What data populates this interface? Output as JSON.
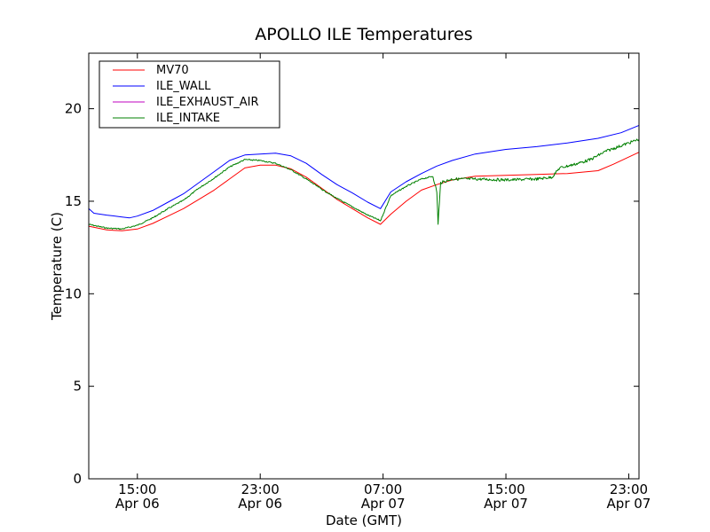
{
  "chart_data": {
    "type": "line",
    "title": "APOLLO ILE Temperatures",
    "xlabel": "Date (GMT)",
    "ylabel": "Temperature (C)",
    "ylim": [
      0,
      23
    ],
    "xlim": [
      "2012-04-06 11:50",
      "2012-04-07 23:40"
    ],
    "grid": false,
    "legend_position": "top-left",
    "y_ticks": [
      0,
      5,
      10,
      15,
      20
    ],
    "x_ticks": [
      {
        "time": "2012-04-06 15:00",
        "label_time": "15:00",
        "label_date": "Apr 06"
      },
      {
        "time": "2012-04-06 23:00",
        "label_time": "23:00",
        "label_date": "Apr 06"
      },
      {
        "time": "2012-04-07 07:00",
        "label_time": "07:00",
        "label_date": "Apr 07"
      },
      {
        "time": "2012-04-07 15:00",
        "label_time": "15:00",
        "label_date": "Apr 07"
      },
      {
        "time": "2012-04-07 23:00",
        "label_time": "23:00",
        "label_date": "Apr 07"
      }
    ],
    "series": [
      {
        "name": "MV70",
        "color": "#ff0000",
        "points": [
          [
            "2012-04-06 11:50",
            13.65
          ],
          [
            "2012-04-06 13:00",
            13.45
          ],
          [
            "2012-04-06 14:00",
            13.4
          ],
          [
            "2012-04-06 15:00",
            13.5
          ],
          [
            "2012-04-06 16:00",
            13.8
          ],
          [
            "2012-04-06 17:00",
            14.2
          ],
          [
            "2012-04-06 18:00",
            14.6
          ],
          [
            "2012-04-06 19:00",
            15.1
          ],
          [
            "2012-04-06 20:00",
            15.6
          ],
          [
            "2012-04-06 21:00",
            16.2
          ],
          [
            "2012-04-06 22:00",
            16.8
          ],
          [
            "2012-04-06 23:00",
            16.95
          ],
          [
            "2012-04-07 00:00",
            16.95
          ],
          [
            "2012-04-07 01:00",
            16.75
          ],
          [
            "2012-04-07 02:00",
            16.3
          ],
          [
            "2012-04-07 03:00",
            15.7
          ],
          [
            "2012-04-07 04:00",
            15.1
          ],
          [
            "2012-04-07 05:00",
            14.6
          ],
          [
            "2012-04-07 06:00",
            14.1
          ],
          [
            "2012-04-07 06:50",
            13.75
          ],
          [
            "2012-04-07 07:30",
            14.3
          ],
          [
            "2012-04-07 08:30",
            15.0
          ],
          [
            "2012-04-07 09:30",
            15.6
          ],
          [
            "2012-04-07 10:30",
            15.9
          ],
          [
            "2012-04-07 11:30",
            16.15
          ],
          [
            "2012-04-07 13:00",
            16.35
          ],
          [
            "2012-04-07 15:00",
            16.4
          ],
          [
            "2012-04-07 17:00",
            16.45
          ],
          [
            "2012-04-07 19:00",
            16.5
          ],
          [
            "2012-04-07 21:00",
            16.65
          ],
          [
            "2012-04-07 22:00",
            17.0
          ],
          [
            "2012-04-07 23:40",
            17.65
          ]
        ]
      },
      {
        "name": "ILE_WALL",
        "color": "#0000ff",
        "points": [
          [
            "2012-04-06 11:50",
            14.6
          ],
          [
            "2012-04-06 12:10",
            14.35
          ],
          [
            "2012-04-06 13:00",
            14.25
          ],
          [
            "2012-04-06 14:00",
            14.15
          ],
          [
            "2012-04-06 14:30",
            14.1
          ],
          [
            "2012-04-06 15:00",
            14.2
          ],
          [
            "2012-04-06 16:00",
            14.5
          ],
          [
            "2012-04-06 17:00",
            14.95
          ],
          [
            "2012-04-06 18:00",
            15.4
          ],
          [
            "2012-04-06 19:00",
            16.0
          ],
          [
            "2012-04-06 20:00",
            16.6
          ],
          [
            "2012-04-06 21:00",
            17.2
          ],
          [
            "2012-04-06 22:00",
            17.5
          ],
          [
            "2012-04-06 23:00",
            17.55
          ],
          [
            "2012-04-07 00:00",
            17.6
          ],
          [
            "2012-04-07 01:00",
            17.45
          ],
          [
            "2012-04-07 02:00",
            17.05
          ],
          [
            "2012-04-07 03:00",
            16.45
          ],
          [
            "2012-04-07 04:00",
            15.9
          ],
          [
            "2012-04-07 05:00",
            15.45
          ],
          [
            "2012-04-07 06:00",
            14.95
          ],
          [
            "2012-04-07 06:50",
            14.6
          ],
          [
            "2012-04-07 07:30",
            15.5
          ],
          [
            "2012-04-07 08:30",
            16.05
          ],
          [
            "2012-04-07 09:30",
            16.5
          ],
          [
            "2012-04-07 10:30",
            16.9
          ],
          [
            "2012-04-07 11:30",
            17.2
          ],
          [
            "2012-04-07 13:00",
            17.55
          ],
          [
            "2012-04-07 15:00",
            17.8
          ],
          [
            "2012-04-07 17:00",
            17.95
          ],
          [
            "2012-04-07 19:00",
            18.15
          ],
          [
            "2012-04-07 21:00",
            18.4
          ],
          [
            "2012-04-07 22:30",
            18.7
          ],
          [
            "2012-04-07 23:40",
            19.1
          ]
        ]
      },
      {
        "name": "ILE_EXHAUST_AIR",
        "color": "#bf00bf",
        "points": []
      },
      {
        "name": "ILE_INTAKE",
        "color": "#008000",
        "points": [
          [
            "2012-04-06 11:50",
            13.75
          ],
          [
            "2012-04-06 13:00",
            13.55
          ],
          [
            "2012-04-06 14:00",
            13.5
          ],
          [
            "2012-04-06 15:00",
            13.7
          ],
          [
            "2012-04-06 16:00",
            14.1
          ],
          [
            "2012-04-06 17:00",
            14.6
          ],
          [
            "2012-04-06 18:00",
            15.05
          ],
          [
            "2012-04-06 19:00",
            15.7
          ],
          [
            "2012-04-06 20:00",
            16.25
          ],
          [
            "2012-04-06 21:00",
            16.85
          ],
          [
            "2012-04-06 22:00",
            17.25
          ],
          [
            "2012-04-06 23:00",
            17.2
          ],
          [
            "2012-04-07 00:00",
            17.05
          ],
          [
            "2012-04-07 01:00",
            16.7
          ],
          [
            "2012-04-07 02:00",
            16.2
          ],
          [
            "2012-04-07 03:00",
            15.65
          ],
          [
            "2012-04-07 04:00",
            15.15
          ],
          [
            "2012-04-07 05:00",
            14.7
          ],
          [
            "2012-04-07 06:00",
            14.25
          ],
          [
            "2012-04-07 06:50",
            13.95
          ],
          [
            "2012-04-07 07:30",
            15.3
          ],
          [
            "2012-04-07 08:30",
            15.8
          ],
          [
            "2012-04-07 09:30",
            16.2
          ],
          [
            "2012-04-07 10:15",
            16.35
          ],
          [
            "2012-04-07 10:30",
            15.5
          ],
          [
            "2012-04-07 10:35",
            13.8
          ],
          [
            "2012-04-07 10:45",
            16.0
          ],
          [
            "2012-04-07 11:30",
            16.2
          ],
          [
            "2012-04-07 13:00",
            16.2
          ],
          [
            "2012-04-07 15:00",
            16.15
          ],
          [
            "2012-04-07 17:00",
            16.2
          ],
          [
            "2012-04-07 18:00",
            16.3
          ],
          [
            "2012-04-07 18:30",
            16.8
          ],
          [
            "2012-04-07 19:30",
            17.0
          ],
          [
            "2012-04-07 20:30",
            17.25
          ],
          [
            "2012-04-07 21:30",
            17.7
          ],
          [
            "2012-04-07 22:30",
            18.0
          ],
          [
            "2012-04-07 23:40",
            18.35
          ]
        ]
      }
    ]
  }
}
